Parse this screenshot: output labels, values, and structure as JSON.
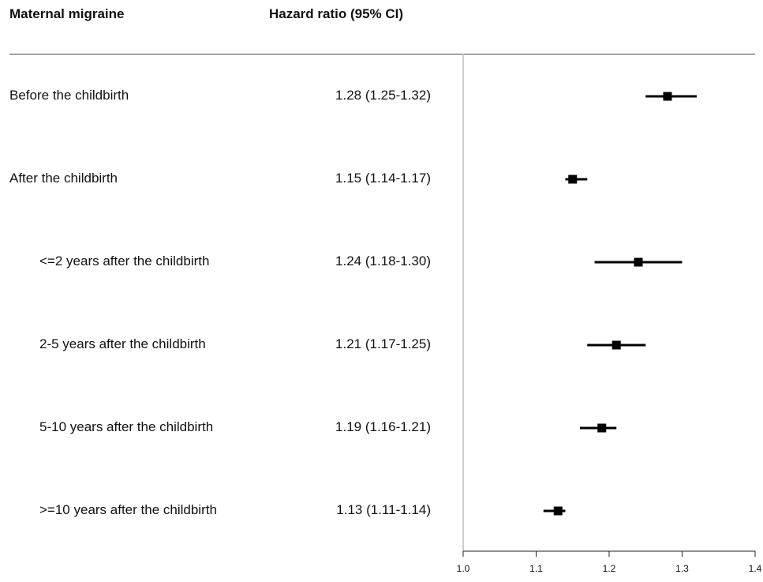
{
  "header": {
    "col_left": "Maternal migraine",
    "col_mid": "Hazard ratio (95% CI)"
  },
  "chart_data": {
    "type": "forest",
    "xlim": [
      1.0,
      1.4
    ],
    "reference_line": 1.0,
    "x_ticks": [
      "1.0",
      "1.1",
      "1.2",
      "1.3",
      "1.4"
    ],
    "rows": [
      {
        "label": "Before the childbirth",
        "indent": false,
        "hr_text": "1.28 (1.25-1.32)",
        "hr": 1.28,
        "lo": 1.25,
        "hi": 1.32
      },
      {
        "label": "After the childbirth",
        "indent": false,
        "hr_text": "1.15 (1.14-1.17)",
        "hr": 1.15,
        "lo": 1.14,
        "hi": 1.17
      },
      {
        "label": "<=2 years after the childbirth",
        "indent": true,
        "hr_text": "1.24 (1.18-1.30)",
        "hr": 1.24,
        "lo": 1.18,
        "hi": 1.3
      },
      {
        "label": "2-5 years after the childbirth",
        "indent": true,
        "hr_text": "1.21 (1.17-1.25)",
        "hr": 1.21,
        "lo": 1.17,
        "hi": 1.25
      },
      {
        "label": "5-10 years after the childbirth",
        "indent": true,
        "hr_text": "1.19 (1.16-1.21)",
        "hr": 1.19,
        "lo": 1.16,
        "hi": 1.21
      },
      {
        "label": ">=10 years after the childbirth",
        "indent": true,
        "hr_text": "1.13 (1.11-1.14)",
        "hr": 1.13,
        "lo": 1.11,
        "hi": 1.14
      }
    ]
  }
}
